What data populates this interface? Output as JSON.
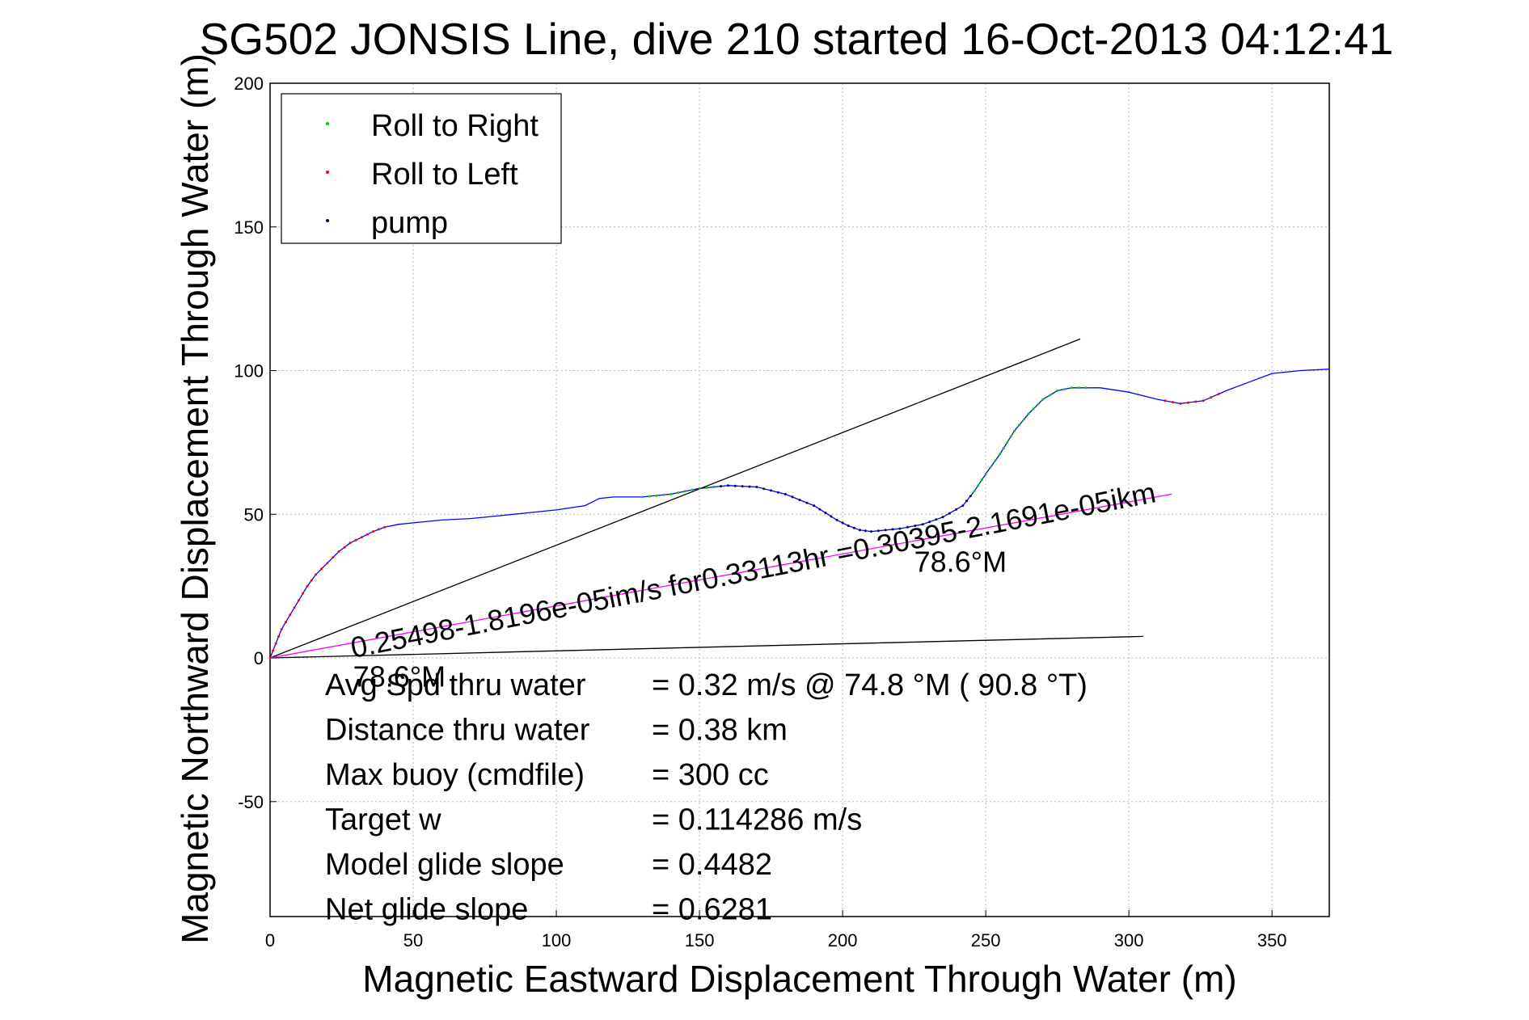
{
  "chart_data": {
    "type": "line",
    "title": "SG502 JONSIS Line, dive 210 started 16-Oct-2013 04:12:41",
    "xlabel": "Magnetic Eastward Displacement Through Water (m)",
    "ylabel": "Magnetic Northward Displacement Through Water (m)",
    "xlim": [
      0,
      370
    ],
    "ylim": [
      -90,
      200
    ],
    "xticks": [
      0,
      50,
      100,
      150,
      200,
      250,
      300,
      350
    ],
    "yticks": [
      -50,
      0,
      50,
      100,
      150,
      200
    ],
    "grid": true,
    "legend_position": "top-left",
    "legend": [
      {
        "label": "Roll to Right",
        "color": "#00cc00"
      },
      {
        "label": "Roll to Left",
        "color": "#ff0000"
      },
      {
        "label": "pump",
        "color": "#000066"
      }
    ],
    "series": [
      {
        "color": "#0000ff",
        "points": [
          [
            0,
            0
          ],
          [
            2,
            5
          ],
          [
            4,
            10
          ],
          [
            7,
            15
          ],
          [
            10,
            20
          ],
          [
            13,
            25
          ],
          [
            16,
            29
          ],
          [
            20,
            33
          ],
          [
            24,
            37
          ],
          [
            28,
            40
          ],
          [
            32,
            42
          ],
          [
            36,
            44
          ],
          [
            40,
            45.5
          ],
          [
            45,
            46.5
          ],
          [
            50,
            47
          ],
          [
            60,
            48
          ],
          [
            70,
            48.5
          ],
          [
            80,
            49.5
          ],
          [
            90,
            50.5
          ],
          [
            100,
            51.5
          ],
          [
            110,
            53
          ],
          [
            115,
            55.5
          ],
          [
            120,
            56
          ],
          [
            130,
            56
          ],
          [
            140,
            57
          ],
          [
            150,
            59
          ],
          [
            160,
            60
          ],
          [
            170,
            59.5
          ],
          [
            180,
            57
          ],
          [
            190,
            53
          ],
          [
            198,
            48
          ],
          [
            202,
            46
          ],
          [
            206,
            44.5
          ],
          [
            210,
            44
          ],
          [
            215,
            44.5
          ],
          [
            220,
            45
          ],
          [
            228,
            46.5
          ],
          [
            235,
            49
          ],
          [
            242,
            53
          ],
          [
            246,
            58
          ],
          [
            250,
            64
          ],
          [
            255,
            71
          ],
          [
            260,
            79
          ],
          [
            265,
            85
          ],
          [
            270,
            90
          ],
          [
            275,
            93
          ],
          [
            280,
            94
          ],
          [
            290,
            94
          ],
          [
            300,
            92.5
          ],
          [
            310,
            90
          ],
          [
            318,
            88.5
          ],
          [
            326,
            89.5
          ],
          [
            334,
            93
          ],
          [
            342,
            96
          ],
          [
            350,
            99
          ],
          [
            360,
            100
          ],
          [
            370,
            100.5
          ]
        ]
      },
      {
        "color": "#000000",
        "points": [
          [
            0,
            0
          ],
          [
            283,
            111
          ]
        ]
      },
      {
        "color": "#000000",
        "points": [
          [
            0,
            0
          ],
          [
            305,
            7.5
          ]
        ]
      },
      {
        "color": "#ff00ff",
        "points": [
          [
            0,
            0
          ],
          [
            315,
            57
          ]
        ]
      }
    ],
    "annotations": [
      {
        "text": "0.25498-1.8196e-05im/s for0.33113hr =0.30395-2.1691e-05ikm",
        "x": 29,
        "y": 0,
        "angle_deg": -11
      },
      {
        "text": "78.6°M",
        "x": 29,
        "y": -10
      },
      {
        "text": "78.6°M",
        "x": 225,
        "y": 30
      }
    ],
    "stats": [
      {
        "label": "Avg Spd thru water",
        "value": "=  0.32 m/s @  74.8 °M ( 90.8 °T)"
      },
      {
        "label": "Distance thru water",
        "value": "=  0.38 km"
      },
      {
        "label": "Max buoy (cmdfile)",
        "value": "= 300 cc"
      },
      {
        "label": "Target w",
        "value": "= 0.114286 m/s"
      },
      {
        "label": "Model glide slope",
        "value": "= 0.4482"
      },
      {
        "label": "Net glide slope",
        "value": "= 0.6281"
      }
    ]
  }
}
